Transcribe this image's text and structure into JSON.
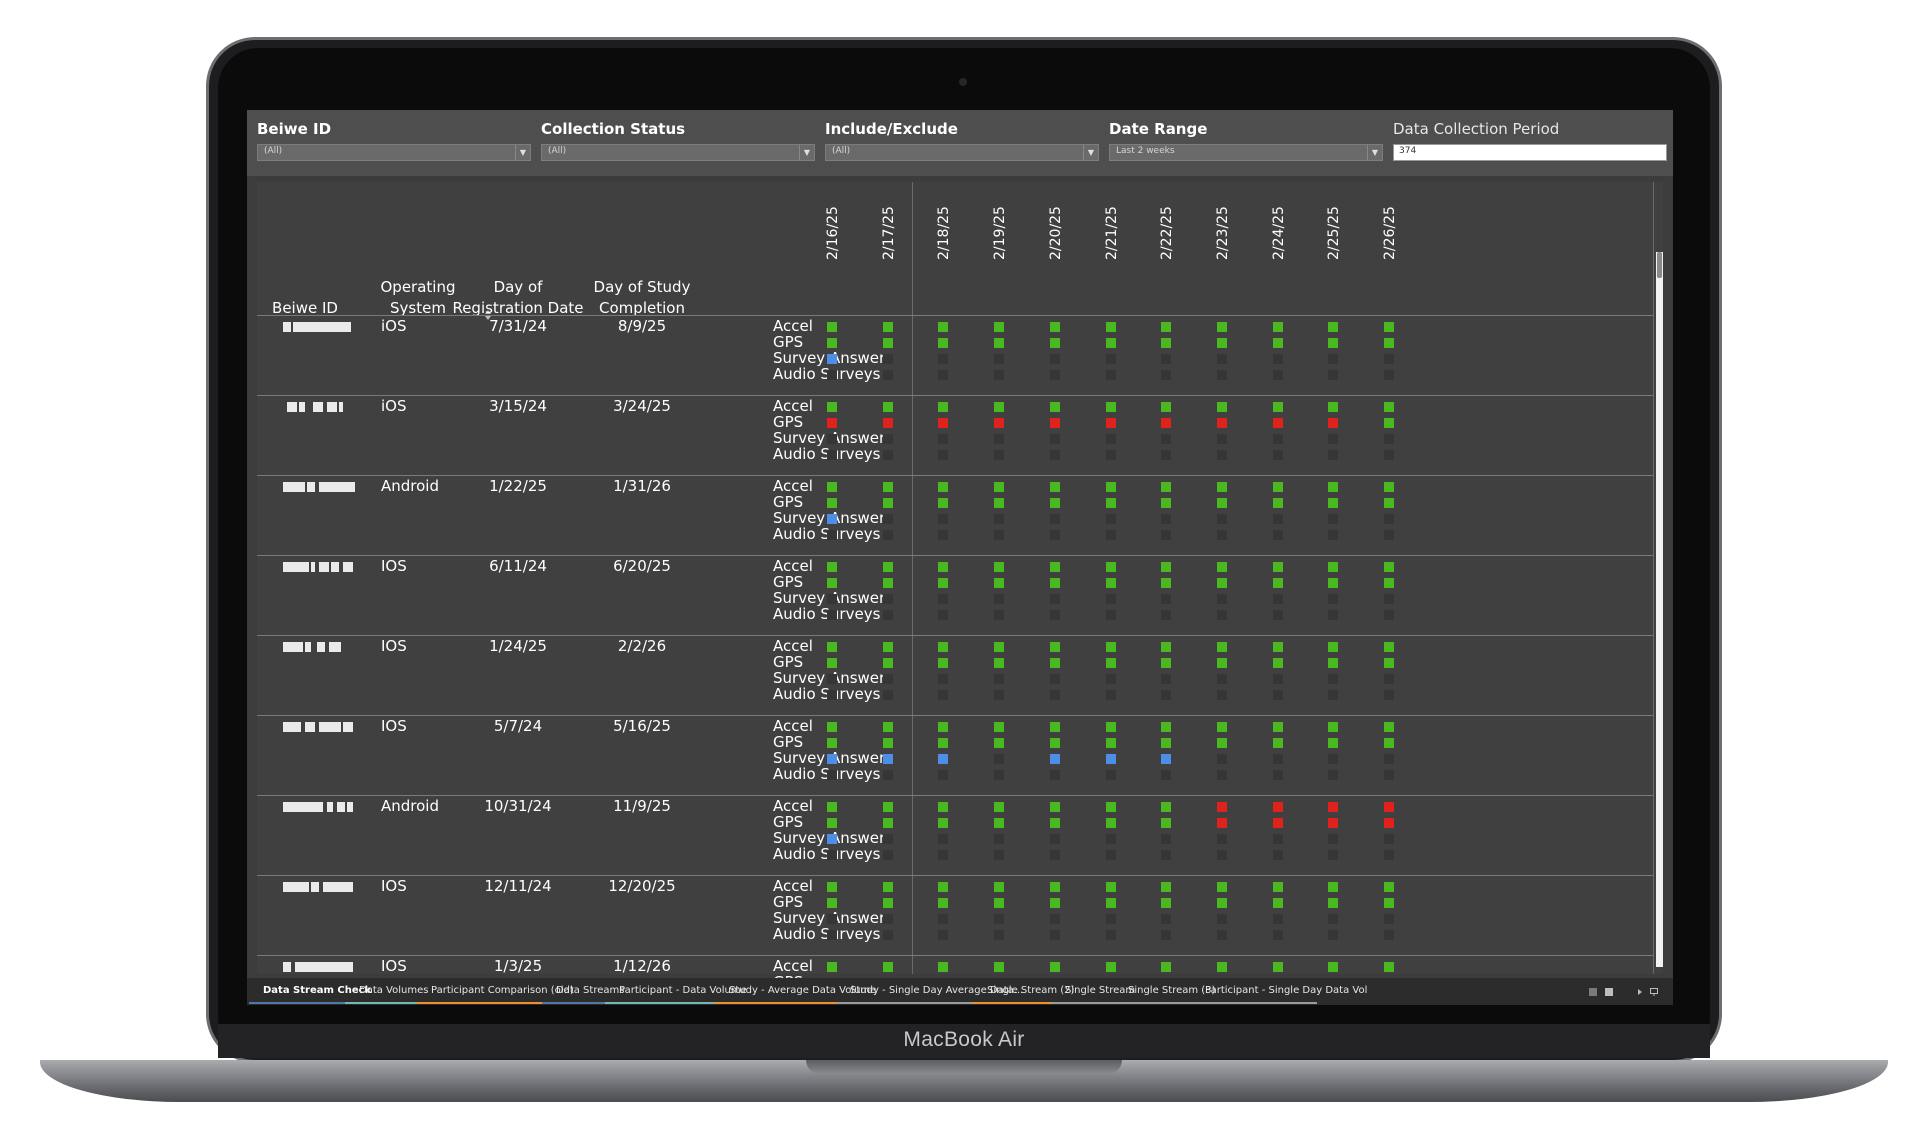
{
  "device": {
    "label": "MacBook Air"
  },
  "filters": [
    {
      "title": "Beiwe ID",
      "value": "(All)",
      "type": "dropdown"
    },
    {
      "title": "Collection Status",
      "value": "(All)",
      "type": "dropdown"
    },
    {
      "title": "Include/Exclude",
      "value": "(All)",
      "type": "dropdown"
    },
    {
      "title": "Date Range",
      "value": "Last 2 weeks",
      "type": "dropdown"
    },
    {
      "title": "Data Collection Period",
      "value": "374",
      "type": "input"
    }
  ],
  "table": {
    "headers": {
      "beiwe_id": "Beiwe ID",
      "os_line1": "Operating",
      "os_line2": "System",
      "reg_line1": "Day of",
      "reg_line2": "Registration Date",
      "comp_line1": "Day of Study",
      "comp_line2": "Completion"
    },
    "dates": [
      "2/16/25",
      "2/17/25",
      "2/18/25",
      "2/19/25",
      "2/20/25",
      "2/21/25",
      "2/22/25",
      "2/23/25",
      "2/24/25",
      "2/25/25",
      "2/26/25"
    ],
    "streams": [
      "Accel",
      "GPS",
      "Survey Answers",
      "Audio Surveys"
    ],
    "status_colors": {
      "G": "#4ab81f",
      "R": "#e0221c",
      "B": "#4d8fe8",
      "N": "#363636"
    },
    "rows": [
      {
        "os": "iOS",
        "registration": "7/31/24",
        "completion": "8/9/25",
        "grid": [
          "GGGGGGGGGGG",
          "GGGGGGGGGGG",
          "BNNNNNNNNNN",
          "NNNNNNNNNNN"
        ]
      },
      {
        "os": "iOS",
        "registration": "3/15/24",
        "completion": "3/24/25",
        "grid": [
          "GGGGGGGGGGG",
          "RRRRRRRRRRG",
          "NNNNNNNNNNN",
          "NNNNNNNNNNN"
        ]
      },
      {
        "os": "Android",
        "registration": "1/22/25",
        "completion": "1/31/26",
        "grid": [
          "GGGGGGGGGGG",
          "GGGGGGGGGGG",
          "BNNNNNNNNNN",
          "NNNNNNNNNNN"
        ]
      },
      {
        "os": "IOS",
        "registration": "6/11/24",
        "completion": "6/20/25",
        "grid": [
          "GGGGGGGGGGG",
          "GGGGGGGGGGG",
          "NNNNNNNNNNN",
          "NNNNNNNNNNN"
        ]
      },
      {
        "os": "IOS",
        "registration": "1/24/25",
        "completion": "2/2/26",
        "grid": [
          "GGGGGGGGGGG",
          "GGGGGGGGGGG",
          "NNNNNNNNNNN",
          "NNNNNNNNNNN"
        ]
      },
      {
        "os": "IOS",
        "registration": "5/7/24",
        "completion": "5/16/25",
        "grid": [
          "GGGGGGGGGGG",
          "GGGGGGGGGGG",
          "BBBNBBBNNNN",
          "NNNNNNNNNNN"
        ]
      },
      {
        "os": "Android",
        "registration": "10/31/24",
        "completion": "11/9/25",
        "grid": [
          "GGGGGGGRRRR",
          "GGGGGGGRRRR",
          "BNNNNNNNNNN",
          "NNNNNNNNNNN"
        ]
      },
      {
        "os": "IOS",
        "registration": "12/11/24",
        "completion": "12/20/25",
        "grid": [
          "GGGGGGGGGGG",
          "GGGGGGGGGGG",
          "NNNNNNNNNNN",
          "NNNNNNNNNNN"
        ]
      },
      {
        "os": "IOS",
        "registration": "1/3/25",
        "completion": "1/12/26",
        "grid": [
          "GGGGGGGGGGG",
          "GGGGGGGGGGG",
          "NNNNNNNNNNN",
          "NNNNNNNNNNN"
        ]
      }
    ]
  },
  "tabs": [
    {
      "label": "Data Stream Check",
      "active": true,
      "color": "#4e79a7"
    },
    {
      "label": "Data Volumes",
      "active": false,
      "color": "#76b7b2"
    },
    {
      "label": "Participant Comparison (old)",
      "active": false,
      "color": "#f28e2b"
    },
    {
      "label": "Data Streams",
      "active": false,
      "color": "#4e79a7"
    },
    {
      "label": "Participant - Data Volume",
      "active": false,
      "color": "#76b7b2"
    },
    {
      "label": "Study - Average Data Volume",
      "active": false,
      "color": "#f28e2b"
    },
    {
      "label": "Study - Single Day Average Data...",
      "active": false,
      "color": "#9c9c9c"
    },
    {
      "label": "Single Stream (2)",
      "active": false,
      "color": "#f28e2b"
    },
    {
      "label": "Single Stream",
      "active": false,
      "color": "#9c9c9c"
    },
    {
      "label": "Single Stream (3)",
      "active": false,
      "color": "#9c9c9c"
    },
    {
      "label": "Participant - Single Day Data Vol",
      "active": false,
      "color": "#9c9c9c"
    }
  ]
}
